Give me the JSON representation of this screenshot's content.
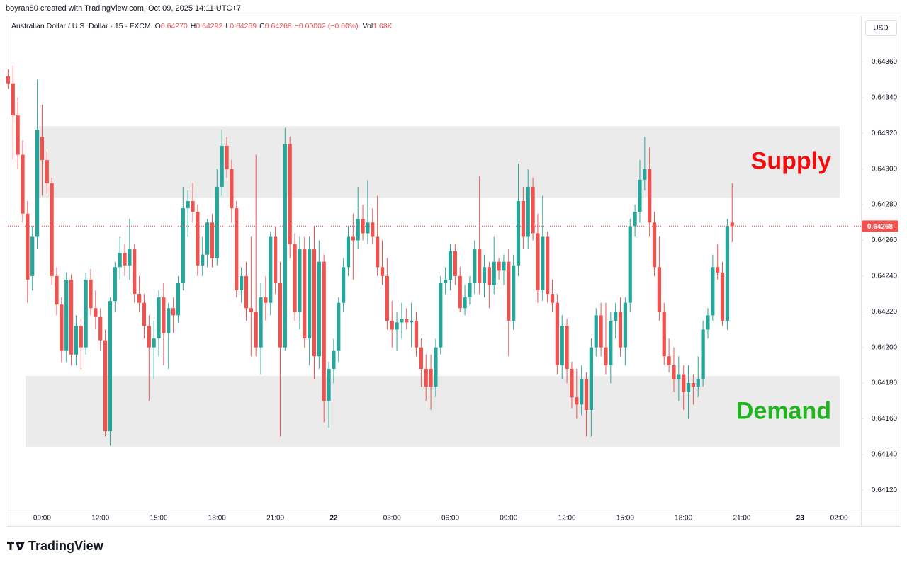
{
  "header": {
    "credit": "boyran80 created with TradingView.com, Oct 09, 2025 14:11 UTC+7"
  },
  "footer": {
    "brand": "TradingView"
  },
  "chart_data": {
    "type": "candlestick",
    "title": "Australian Dollar / U.S. Dollar · 15 · FXCM",
    "legend": {
      "items": [
        {
          "label": "O",
          "value": "0.64270"
        },
        {
          "label": "H",
          "value": "0.64292"
        },
        {
          "label": "L",
          "value": "0.64259"
        },
        {
          "label": "C",
          "value": "0.64268"
        }
      ],
      "change": "−0.00002 (−0.00%)",
      "volume": {
        "label": "Vol",
        "value": "1.08K"
      }
    },
    "currency": "USD",
    "up_color": "#26a69a",
    "down_color": "#ef5350",
    "grid": false,
    "categories": [
      null,
      null,
      null,
      null,
      null,
      null,
      null,
      "09:00",
      null,
      null,
      null,
      null,
      null,
      null,
      null,
      null,
      null,
      null,
      null,
      "12:00",
      null,
      null,
      null,
      null,
      null,
      null,
      null,
      null,
      null,
      null,
      null,
      "15:00",
      null,
      null,
      null,
      null,
      null,
      null,
      null,
      null,
      null,
      null,
      null,
      "18:00",
      null,
      null,
      null,
      null,
      null,
      null,
      null,
      null,
      null,
      null,
      null,
      "21:00",
      null,
      null,
      null,
      null,
      null,
      null,
      null,
      null,
      null,
      null,
      null,
      "22",
      null,
      null,
      null,
      null,
      null,
      null,
      null,
      null,
      null,
      null,
      null,
      "03:00",
      null,
      null,
      null,
      null,
      null,
      null,
      null,
      null,
      null,
      null,
      null,
      "06:00",
      null,
      null,
      null,
      null,
      null,
      null,
      null,
      null,
      null,
      null,
      null,
      "09:00",
      null,
      null,
      null,
      null,
      null,
      null,
      null,
      null,
      null,
      null,
      null,
      "12:00",
      null,
      null,
      null,
      null,
      null,
      null,
      null,
      null,
      null,
      null,
      null,
      "15:00",
      null,
      null,
      null,
      null,
      null,
      null,
      null,
      null,
      null,
      null,
      null,
      "18:00",
      null,
      null,
      null,
      null,
      null,
      null,
      null,
      null,
      null,
      null,
      null,
      "21:00",
      null,
      null,
      null,
      null,
      null,
      null,
      null,
      null,
      null,
      null,
      null,
      "23",
      null,
      null,
      null,
      null,
      null,
      null,
      null,
      "02:00",
      null,
      null,
      null,
      null
    ],
    "open": [
      0.64352,
      0.64348,
      0.6433,
      0.64308,
      0.64275,
      0.6424,
      0.64262,
      0.64318,
      0.64305,
      0.64292,
      0.6424,
      0.64224,
      0.64198,
      0.64238,
      0.64196,
      0.64212,
      0.642,
      0.64238,
      0.64222,
      0.64217,
      0.64204,
      0.64153,
      0.64226,
      0.64245,
      0.64253,
      0.64246,
      0.64255,
      0.6423,
      0.64225,
      0.64212,
      0.642,
      0.64205,
      0.64228,
      0.64208,
      0.64222,
      0.64218,
      0.64236,
      0.64278,
      0.64282,
      0.64276,
      0.64246,
      0.64252,
      0.6427,
      0.6425,
      0.6429,
      0.64313,
      0.643,
      0.64278,
      0.64232,
      0.6424,
      0.64222,
      0.6422,
      0.642,
      0.64228,
      0.64225,
      0.64262,
      0.64236,
      0.642,
      0.64314,
      0.64258,
      0.6422,
      0.64255,
      0.64205,
      0.64255,
      0.64195,
      0.64248,
      0.6417,
      0.64188,
      0.64198,
      0.64225,
      0.64245,
      0.64262,
      0.6426,
      0.64272,
      0.64264,
      0.6427,
      0.64262,
      0.64245,
      0.6424,
      0.64215,
      0.6421,
      0.64214,
      0.64216,
      0.64214,
      0.64215,
      0.642,
      0.64188,
      0.64188,
      0.64178,
      0.642,
      0.64236,
      0.64238,
      0.64254,
      0.6424,
      0.64222,
      0.64228,
      0.64236,
      0.64255,
      0.64236,
      0.64245,
      0.64235,
      0.64248,
      0.64243,
      0.64248,
      0.64215,
      0.64246,
      0.64282,
      0.64262,
      0.6429,
      0.64264,
      0.64232,
      0.64262,
      0.6423,
      0.64225,
      0.6419,
      0.64212,
      0.64188,
      0.64172,
      0.64168,
      0.64182,
      0.64165,
      0.642,
      0.64218,
      0.642,
      0.6419,
      0.64215,
      0.6422,
      0.642,
      0.64225,
      0.64268,
      0.64276,
      0.64294,
      0.643,
      0.6427,
      0.64245,
      0.6422,
      0.64195,
      0.6419,
      0.64182,
      0.64185,
      0.64175,
      0.6418,
      0.64178,
      0.64182,
      0.6421,
      0.64218,
      0.64245,
      0.64242,
      0.64215,
      0.6427,
      null,
      null,
      null,
      null,
      null,
      null,
      null,
      null,
      null,
      null,
      null,
      null,
      null,
      null,
      null,
      null,
      null,
      null,
      null,
      null,
      null,
      null,
      null,
      null,
      null,
      null
    ],
    "high": [
      0.64356,
      0.64358,
      0.6434,
      0.64316,
      0.64282,
      0.64268,
      0.6435,
      0.64336,
      0.6431,
      0.64295,
      0.64245,
      0.64228,
      0.64242,
      0.64241,
      0.64218,
      0.64216,
      0.64242,
      0.64244,
      0.64232,
      0.64222,
      0.6421,
      0.64228,
      0.64248,
      0.64262,
      0.64258,
      0.64272,
      0.64258,
      0.6424,
      0.6423,
      0.64218,
      0.64215,
      0.64232,
      0.64236,
      0.64225,
      0.64228,
      0.6424,
      0.6429,
      0.64288,
      0.64292,
      0.6428,
      0.64262,
      0.64272,
      0.64275,
      0.643,
      0.64322,
      0.64318,
      0.64305,
      0.64282,
      0.64245,
      0.64248,
      0.64262,
      0.64308,
      0.64236,
      0.6424,
      0.64265,
      0.64268,
      0.64248,
      0.64323,
      0.64318,
      0.64264,
      0.64262,
      0.64262,
      0.64262,
      0.64268,
      0.6426,
      0.64252,
      0.64192,
      0.64205,
      0.64228,
      0.6425,
      0.64268,
      0.64275,
      0.6429,
      0.6428,
      0.64294,
      0.64278,
      0.64285,
      0.6426,
      0.6425,
      0.64226,
      0.6422,
      0.64225,
      0.64222,
      0.64225,
      0.6422,
      0.64205,
      0.64196,
      0.64196,
      0.64205,
      0.6424,
      0.64245,
      0.64258,
      0.64258,
      0.64245,
      0.64235,
      0.6424,
      0.6426,
      0.64296,
      0.64252,
      0.64248,
      0.64262,
      0.6425,
      0.64252,
      0.64255,
      0.64252,
      0.64303,
      0.6429,
      0.643,
      0.64295,
      0.64275,
      0.64285,
      0.64265,
      0.64238,
      0.6423,
      0.64218,
      0.64216,
      0.64192,
      0.64188,
      0.6419,
      0.64186,
      0.64205,
      0.64222,
      0.64225,
      0.64225,
      0.6422,
      0.64225,
      0.64228,
      0.64228,
      0.64272,
      0.6428,
      0.64305,
      0.64318,
      0.64312,
      0.64276,
      0.64262,
      0.64225,
      0.64205,
      0.642,
      0.64195,
      0.6419,
      0.6419,
      0.64185,
      0.64195,
      0.64215,
      0.64222,
      0.64252,
      0.64258,
      0.64248,
      0.64272,
      0.64292,
      null,
      null,
      null,
      null,
      null,
      null,
      null,
      null,
      null,
      null,
      null,
      null,
      null,
      null,
      null,
      null,
      null,
      null,
      null,
      null,
      null,
      null,
      null,
      null,
      null,
      null
    ],
    "low": [
      0.64345,
      0.64305,
      0.643,
      0.6427,
      0.64225,
      0.64232,
      0.64255,
      0.64285,
      0.64286,
      0.64235,
      0.64218,
      0.64192,
      0.64192,
      0.6419,
      0.6419,
      0.64188,
      0.64196,
      0.64218,
      0.6421,
      0.64198,
      0.6415,
      0.64145,
      0.6422,
      0.64238,
      0.6424,
      0.64238,
      0.64225,
      0.6422,
      0.64205,
      0.6417,
      0.64182,
      0.64195,
      0.6419,
      0.64188,
      0.64208,
      0.64214,
      0.64232,
      0.64262,
      0.6427,
      0.6424,
      0.6424,
      0.64245,
      0.64245,
      0.64246,
      0.64285,
      0.64295,
      0.6427,
      0.64228,
      0.64225,
      0.64215,
      0.64195,
      0.64195,
      0.64185,
      0.64215,
      0.64218,
      0.6423,
      0.6415,
      0.64198,
      0.6425,
      0.64215,
      0.6421,
      0.642,
      0.6419,
      0.64182,
      0.64188,
      0.64158,
      0.64155,
      0.6418,
      0.64192,
      0.6422,
      0.6424,
      0.64238,
      0.64255,
      0.6426,
      0.64258,
      0.64258,
      0.6424,
      0.64235,
      0.6421,
      0.642,
      0.64198,
      0.64205,
      0.6421,
      0.642,
      0.64195,
      0.64178,
      0.6417,
      0.64165,
      0.64172,
      0.64196,
      0.6423,
      0.64232,
      0.64235,
      0.6422,
      0.64218,
      0.64224,
      0.6423,
      0.6423,
      0.64228,
      0.64222,
      0.6423,
      0.64238,
      0.64235,
      0.64195,
      0.6421,
      0.6424,
      0.64255,
      0.64255,
      0.6426,
      0.64225,
      0.64226,
      0.64225,
      0.6422,
      0.64185,
      0.64182,
      0.6418,
      0.64166,
      0.6416,
      0.64162,
      0.6415,
      0.6415,
      0.64195,
      0.64195,
      0.64185,
      0.6418,
      0.64205,
      0.64195,
      0.6419,
      0.6422,
      0.64262,
      0.6427,
      0.64288,
      0.64262,
      0.6424,
      0.64215,
      0.6419,
      0.64186,
      0.64175,
      0.6417,
      0.64165,
      0.6416,
      0.64168,
      0.64172,
      0.64178,
      0.64205,
      0.64215,
      0.64238,
      0.64212,
      0.6421,
      0.64259,
      null,
      null,
      null,
      null,
      null,
      null,
      null,
      null,
      null,
      null,
      null,
      null,
      null,
      null,
      null,
      null,
      null,
      null,
      null,
      null,
      null,
      null,
      null,
      null,
      null,
      null
    ],
    "close": [
      0.64348,
      0.6433,
      0.64308,
      0.64275,
      0.64238,
      0.64262,
      0.64322,
      0.64305,
      0.64292,
      0.6424,
      0.64224,
      0.64198,
      0.64238,
      0.64196,
      0.64212,
      0.642,
      0.64238,
      0.64222,
      0.64217,
      0.64204,
      0.64153,
      0.64226,
      0.64245,
      0.64253,
      0.64246,
      0.64255,
      0.6423,
      0.64225,
      0.64212,
      0.642,
      0.64205,
      0.64228,
      0.64208,
      0.64222,
      0.64218,
      0.64236,
      0.64278,
      0.64282,
      0.64276,
      0.64246,
      0.64252,
      0.6427,
      0.6425,
      0.6429,
      0.64313,
      0.643,
      0.64278,
      0.64232,
      0.6424,
      0.64222,
      0.6422,
      0.642,
      0.64228,
      0.64225,
      0.64262,
      0.64236,
      0.642,
      0.64314,
      0.64258,
      0.6422,
      0.64255,
      0.64205,
      0.64255,
      0.64195,
      0.64248,
      0.6417,
      0.64188,
      0.64198,
      0.64225,
      0.64245,
      0.64262,
      0.6426,
      0.64272,
      0.64264,
      0.6427,
      0.64262,
      0.64245,
      0.6424,
      0.64215,
      0.6421,
      0.64214,
      0.64216,
      0.64214,
      0.64215,
      0.642,
      0.64188,
      0.64178,
      0.64178,
      0.642,
      0.64236,
      0.64238,
      0.64254,
      0.6424,
      0.64222,
      0.64228,
      0.64236,
      0.64255,
      0.64236,
      0.64245,
      0.64235,
      0.64248,
      0.64243,
      0.64248,
      0.64215,
      0.64246,
      0.64282,
      0.64262,
      0.6429,
      0.64264,
      0.64232,
      0.64262,
      0.6423,
      0.64225,
      0.6419,
      0.64212,
      0.64188,
      0.64172,
      0.64168,
      0.64182,
      0.64165,
      0.642,
      0.64218,
      0.642,
      0.6419,
      0.64215,
      0.6422,
      0.642,
      0.64225,
      0.64268,
      0.64276,
      0.64294,
      0.643,
      0.6427,
      0.64245,
      0.6422,
      0.64195,
      0.6419,
      0.64182,
      0.64185,
      0.64175,
      0.6418,
      0.64178,
      0.64182,
      0.6421,
      0.64218,
      0.64245,
      0.64242,
      0.64215,
      0.64268,
      0.64268,
      null,
      null,
      null,
      null,
      null,
      null,
      null,
      null,
      null,
      null,
      null,
      null,
      null,
      null,
      null,
      null,
      null,
      null,
      null,
      null,
      null,
      null,
      null,
      null,
      null,
      null
    ],
    "ylim": [
      0.64109,
      0.64386
    ],
    "yticks": [
      {
        "value": 0.6412,
        "label": "0.64120"
      },
      {
        "value": 0.6414,
        "label": "0.64140"
      },
      {
        "value": 0.6416,
        "label": "0.64160"
      },
      {
        "value": 0.6418,
        "label": "0.64180"
      },
      {
        "value": 0.642,
        "label": "0.64200"
      },
      {
        "value": 0.6422,
        "label": "0.64220"
      },
      {
        "value": 0.6424,
        "label": "0.64240"
      },
      {
        "value": 0.6426,
        "label": "0.64260"
      },
      {
        "value": 0.6428,
        "label": "0.64280"
      },
      {
        "value": 0.643,
        "label": "0.64300"
      },
      {
        "value": 0.6432,
        "label": "0.64320"
      },
      {
        "value": 0.6434,
        "label": "0.64340"
      },
      {
        "value": 0.6436,
        "label": "0.64360"
      }
    ],
    "zones": [
      {
        "label": "Supply",
        "top": 0.64324,
        "bottom": 0.64284,
        "fill": "#ebebeb",
        "text_color": "#f20d0d"
      },
      {
        "label": "Demand",
        "top": 0.64184,
        "bottom": 0.64144,
        "fill": "#ebebeb",
        "text_color": "#1fb51f"
      }
    ]
  }
}
